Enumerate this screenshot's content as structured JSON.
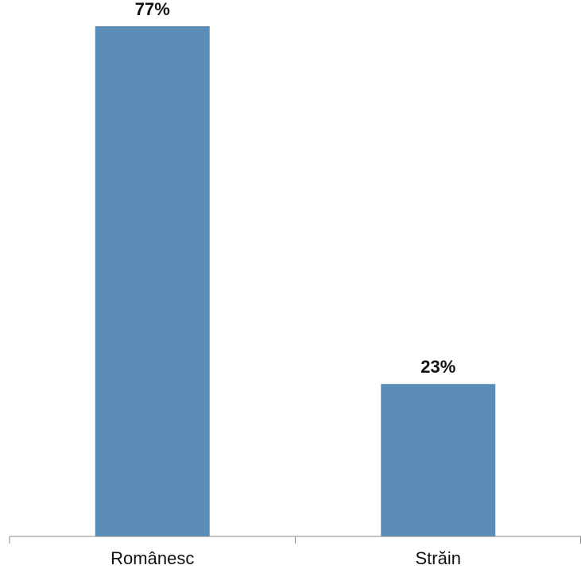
{
  "chart_data": {
    "type": "bar",
    "categories": [
      "Românesc",
      "Străin"
    ],
    "values": [
      77,
      23
    ],
    "value_labels": [
      "77%",
      "23%"
    ],
    "ylim": [
      0,
      80
    ],
    "grid": false,
    "legend": "none",
    "colors": {
      "bar": "#5b8db8",
      "axis": "#888888",
      "text": "#111111"
    }
  }
}
